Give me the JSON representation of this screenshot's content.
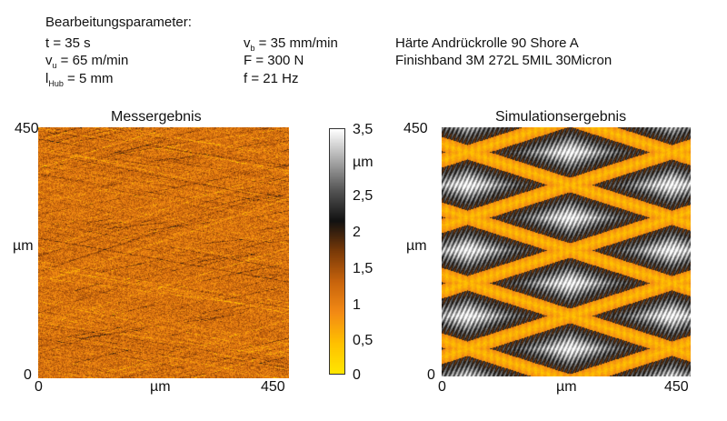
{
  "header": {
    "title": "Bearbeitungsparameter:",
    "col1": {
      "line1": "t = 35 s",
      "line2_sym": "v",
      "line2_sub": "u",
      "line2_rest": " = 65 m/min",
      "line3_sym": "l",
      "line3_sub": "Hub",
      "line3_rest": " = 5 mm"
    },
    "col2": {
      "line1_sym": "v",
      "line1_sub": "b",
      "line1_rest": " = 35 mm/min",
      "line2": "F = 300 N",
      "line3": "f = 21 Hz"
    },
    "col3": {
      "line1": "Härte Andrückrolle 90 Shore A",
      "line2": "Finishband 3M 272L 5MIL 30Micron"
    }
  },
  "colors": {
    "colormap": [
      "#ffe600",
      "#ffc000",
      "#f38a14",
      "#c8640c",
      "#7a3a08",
      "#111111",
      "#555555",
      "#aaaaaa",
      "#ffffff"
    ]
  },
  "chart_data": [
    {
      "type": "heatmap",
      "title": "Messergebnis",
      "xlabel": "µm",
      "ylabel": "µm",
      "xlim": [
        0,
        450
      ],
      "ylim": [
        0,
        450
      ],
      "x_ticks": [
        "0",
        "450"
      ],
      "y_ticks": [
        "0",
        "450"
      ]
    },
    {
      "type": "heatmap",
      "title": "Simulationsergebnis",
      "xlabel": "µm",
      "ylabel": "µm",
      "xlim": [
        0,
        450
      ],
      "ylim": [
        0,
        450
      ],
      "x_ticks": [
        "0",
        "450"
      ],
      "y_ticks": [
        "0",
        "450"
      ]
    }
  ],
  "colorbar": {
    "unit": "µm",
    "range": [
      0,
      3.5
    ],
    "tick_values": [
      0,
      0.5,
      1,
      1.5,
      2,
      2.5,
      3.5
    ],
    "tick_labels": [
      "0",
      "0,5",
      "1",
      "1,5",
      "2",
      "2,5",
      "3,5"
    ]
  }
}
